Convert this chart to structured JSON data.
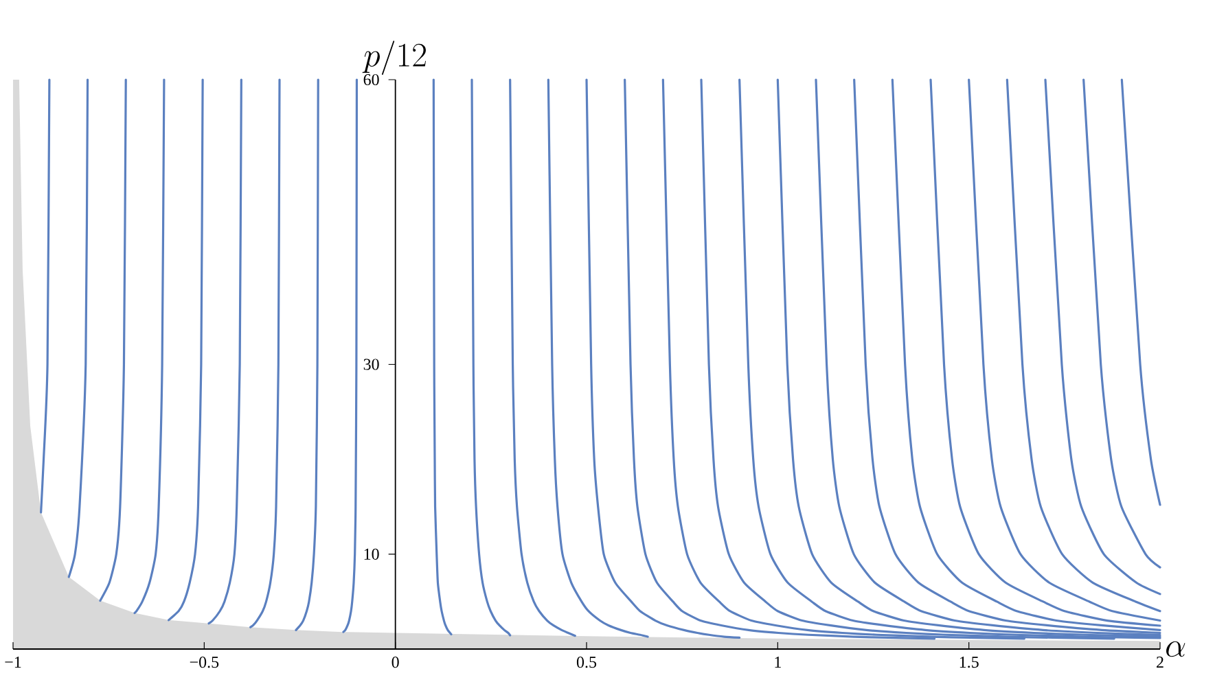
{
  "chart_data": {
    "type": "line",
    "xlabel": "\\alpha",
    "ylabel": "p/12",
    "xlim": [
      -1,
      2
    ],
    "ylim": [
      0,
      60
    ],
    "xticks": [
      {
        "value": -1,
        "label": "−1"
      },
      {
        "value": -0.5,
        "label": "−0.5"
      },
      {
        "value": 0,
        "label": "0"
      },
      {
        "value": 0.5,
        "label": "0.5"
      },
      {
        "value": 1,
        "label": "1"
      },
      {
        "value": 1.5,
        "label": "1.5"
      },
      {
        "value": 2,
        "label": "2"
      }
    ],
    "yticks": [
      10,
      30,
      60
    ],
    "series": [
      {
        "type": "area",
        "color": "#d9d9d9",
        "x": [
          -1,
          -0.984,
          -0.975,
          -0.955,
          -0.927,
          -0.854,
          -0.772,
          -0.682,
          -0.593,
          -0.488,
          -0.379,
          -0.26,
          -0.138,
          0,
          0.5,
          1,
          1.5,
          2
        ],
        "values": [
          60,
          60,
          40,
          23.5,
          14.4,
          7.6,
          5.1,
          3.8,
          3.05,
          2.7,
          2.3,
          2.0,
          1.8,
          1.7,
          1.35,
          1.1,
          0.95,
          0.85
        ]
      },
      {
        "color": "#5b80c0",
        "x": [
          -0.905,
          -0.91,
          -0.92,
          -0.927
        ],
        "values": [
          60,
          30,
          20,
          14.4
        ]
      },
      {
        "color": "#5b80c0",
        "x": [
          -0.805,
          -0.81,
          -0.826,
          -0.838,
          -0.854
        ],
        "values": [
          60,
          30,
          15,
          10,
          7.6
        ]
      },
      {
        "color": "#5b80c0",
        "x": [
          -0.705,
          -0.71,
          -0.72,
          -0.73,
          -0.748,
          -0.772
        ],
        "values": [
          60,
          30,
          15,
          10,
          7,
          5.1
        ]
      },
      {
        "color": "#5b80c0",
        "x": [
          -0.605,
          -0.61,
          -0.619,
          -0.627,
          -0.643,
          -0.662,
          -0.677,
          -0.682
        ],
        "values": [
          60,
          30,
          15,
          10,
          7,
          5,
          4,
          3.8
        ]
      },
      {
        "color": "#5b80c0",
        "x": [
          -0.504,
          -0.508,
          -0.516,
          -0.524,
          -0.538,
          -0.553,
          -0.567,
          -0.593
        ],
        "values": [
          60,
          30,
          15,
          10,
          7,
          5,
          4,
          3.05
        ]
      },
      {
        "color": "#5b80c0",
        "x": [
          -0.403,
          -0.407,
          -0.415,
          -0.421,
          -0.433,
          -0.447,
          -0.459,
          -0.478,
          -0.488
        ],
        "values": [
          60,
          30,
          15,
          10,
          7,
          5,
          4,
          3,
          2.7
        ]
      },
      {
        "color": "#5b80c0",
        "x": [
          -0.303,
          -0.306,
          -0.312,
          -0.318,
          -0.327,
          -0.338,
          -0.347,
          -0.362,
          -0.372,
          -0.379
        ],
        "values": [
          60,
          30,
          15,
          10,
          7,
          5,
          4,
          3,
          2.5,
          2.3
        ]
      },
      {
        "color": "#5b80c0",
        "x": [
          -0.202,
          -0.204,
          -0.208,
          -0.213,
          -0.219,
          -0.226,
          -0.232,
          -0.241,
          -0.249,
          -0.26
        ],
        "values": [
          60,
          30,
          15,
          10,
          7,
          5,
          4,
          3,
          2.5,
          2.0
        ]
      },
      {
        "color": "#5b80c0",
        "x": [
          -0.101,
          -0.102,
          -0.104,
          -0.106,
          -0.109,
          -0.113,
          -0.116,
          -0.121,
          -0.125,
          -0.131,
          -0.136
        ],
        "values": [
          60,
          30,
          15,
          10,
          7,
          5,
          4,
          3,
          2.5,
          2,
          1.8
        ]
      },
      {
        "color": "#5b80c0",
        "x": [
          0.1,
          0.1015,
          0.103,
          0.104,
          0.108,
          0.111,
          0.117,
          0.121,
          0.127,
          0.131,
          0.137,
          0.146
        ],
        "values": [
          60,
          30,
          20,
          15,
          10,
          7,
          5,
          4,
          3,
          2.5,
          2,
          1.55
        ]
      },
      {
        "color": "#5b80c0",
        "x": [
          0.2,
          0.204,
          0.207,
          0.211,
          0.219,
          0.228,
          0.24,
          0.249,
          0.262,
          0.272,
          0.285,
          0.295,
          0.3
        ],
        "values": [
          60,
          30,
          20,
          15,
          10,
          7,
          5,
          4,
          3,
          2.5,
          2,
          1.7,
          1.45
        ]
      },
      {
        "color": "#5b80c0",
        "x": [
          0.3,
          0.307,
          0.312,
          0.318,
          0.33,
          0.345,
          0.362,
          0.376,
          0.397,
          0.413,
          0.435,
          0.452,
          0.47
        ],
        "values": [
          60,
          30,
          20,
          15,
          10,
          7,
          5,
          4,
          3,
          2.5,
          2,
          1.7,
          1.4
        ]
      },
      {
        "color": "#5b80c0",
        "x": [
          0.4,
          0.41,
          0.417,
          0.424,
          0.437,
          0.46,
          0.487,
          0.505,
          0.535,
          0.557,
          0.59,
          0.615,
          0.64,
          0.66
        ],
        "values": [
          60,
          30,
          20,
          15,
          10,
          7,
          5,
          4,
          3,
          2.5,
          2,
          1.7,
          1.5,
          1.3
        ]
      },
      {
        "color": "#5b80c0",
        "x": [
          0.5,
          0.512,
          0.52,
          0.53,
          0.545,
          0.575,
          0.617,
          0.64,
          0.68,
          0.71,
          0.755,
          0.79,
          0.82,
          0.86,
          0.9
        ],
        "values": [
          60,
          30,
          20,
          15,
          10,
          7,
          5,
          4,
          3,
          2.5,
          2,
          1.7,
          1.5,
          1.3,
          1.2
        ]
      },
      {
        "color": "#5b80c0",
        "x": [
          0.6,
          0.615,
          0.624,
          0.633,
          0.654,
          0.684,
          0.726,
          0.75,
          0.798,
          0.852,
          0.924,
          1.002,
          1.08,
          1.2,
          1.29,
          1.41
        ],
        "values": [
          60,
          30,
          20,
          15,
          10,
          7,
          5,
          4,
          3,
          2.5,
          2,
          1.7,
          1.5,
          1.3,
          1.2,
          1.1
        ]
      },
      {
        "color": "#5b80c0",
        "x": [
          0.7,
          0.718,
          0.728,
          0.739,
          0.763,
          0.798,
          0.847,
          0.875,
          0.931,
          0.994,
          1.078,
          1.169,
          1.26,
          1.4,
          1.505,
          1.645
        ],
        "values": [
          60,
          30,
          20,
          15,
          10,
          7,
          5,
          4,
          3,
          2.5,
          2,
          1.7,
          1.5,
          1.3,
          1.2,
          1.1
        ]
      },
      {
        "color": "#5b80c0",
        "x": [
          0.8,
          0.82,
          0.832,
          0.844,
          0.872,
          0.912,
          0.968,
          1.0,
          1.064,
          1.136,
          1.232,
          1.336,
          1.44,
          1.6,
          1.72,
          1.88
        ],
        "values": [
          60,
          30,
          20,
          15,
          10,
          7,
          5,
          4,
          3,
          2.5,
          2,
          1.7,
          1.5,
          1.3,
          1.2,
          1.1
        ]
      },
      {
        "color": "#5b80c0",
        "x": [
          0.9,
          0.923,
          0.936,
          0.95,
          0.981,
          1.026,
          1.089,
          1.125,
          1.197,
          1.278,
          1.386,
          1.503,
          1.62,
          1.8,
          1.935,
          2
        ],
        "values": [
          60,
          30,
          20,
          15,
          10,
          7,
          5,
          4,
          3,
          2.5,
          2,
          1.7,
          1.5,
          1.3,
          1.2,
          1.16
        ]
      },
      {
        "color": "#5b80c0",
        "x": [
          1.0,
          1.025,
          1.04,
          1.055,
          1.09,
          1.14,
          1.21,
          1.25,
          1.33,
          1.42,
          1.54,
          1.67,
          1.8,
          2.0
        ],
        "values": [
          60,
          30,
          20,
          15,
          10,
          7,
          5,
          4,
          3,
          2.5,
          2,
          1.7,
          1.5,
          1.3
        ]
      },
      {
        "color": "#5b80c0",
        "x": [
          1.1,
          1.128,
          1.144,
          1.161,
          1.199,
          1.254,
          1.331,
          1.375,
          1.463,
          1.562,
          1.694,
          1.837,
          2
        ],
        "values": [
          60,
          30,
          20,
          15,
          10,
          7,
          5,
          4,
          3,
          2.5,
          2,
          1.7,
          1.47
        ]
      },
      {
        "color": "#5b80c0",
        "x": [
          1.2,
          1.23,
          1.248,
          1.266,
          1.308,
          1.368,
          1.452,
          1.5,
          1.596,
          1.704,
          1.848,
          2
        ],
        "values": [
          60,
          30,
          20,
          15,
          10,
          7,
          5,
          4,
          3,
          2.5,
          2,
          1.7
        ]
      },
      {
        "color": "#5b80c0",
        "x": [
          1.3,
          1.333,
          1.352,
          1.372,
          1.417,
          1.482,
          1.573,
          1.625,
          1.729,
          1.846,
          2
        ],
        "values": [
          60,
          30,
          20,
          15,
          10,
          7,
          5,
          4,
          3,
          2.5,
          2.0
        ]
      },
      {
        "color": "#5b80c0",
        "x": [
          1.4,
          1.435,
          1.456,
          1.477,
          1.526,
          1.596,
          1.694,
          1.75,
          1.862,
          2
        ],
        "values": [
          60,
          30,
          20,
          15,
          10,
          7,
          5,
          4,
          3,
          2.46
        ]
      },
      {
        "color": "#5b80c0",
        "x": [
          1.5,
          1.538,
          1.56,
          1.583,
          1.635,
          1.71,
          1.815,
          1.875,
          2
        ],
        "values": [
          60,
          30,
          20,
          15,
          10,
          7,
          5,
          4,
          3.0
        ]
      },
      {
        "color": "#5b80c0",
        "x": [
          1.6,
          1.64,
          1.664,
          1.688,
          1.744,
          1.824,
          1.936,
          2
        ],
        "values": [
          60,
          30,
          20,
          15,
          10,
          7,
          5,
          4
        ]
      },
      {
        "color": "#5b80c0",
        "x": [
          1.7,
          1.743,
          1.768,
          1.794,
          1.853,
          1.938,
          2
        ],
        "values": [
          60,
          30,
          20,
          15,
          10,
          7,
          5.8
        ]
      },
      {
        "color": "#5b80c0",
        "x": [
          1.8,
          1.845,
          1.872,
          1.899,
          1.962,
          2
        ],
        "values": [
          60,
          30,
          20,
          15,
          10,
          8.6
        ]
      },
      {
        "color": "#5b80c0",
        "x": [
          1.9,
          1.948,
          1.976,
          2
        ],
        "values": [
          60,
          30,
          20,
          15.2
        ]
      }
    ]
  }
}
